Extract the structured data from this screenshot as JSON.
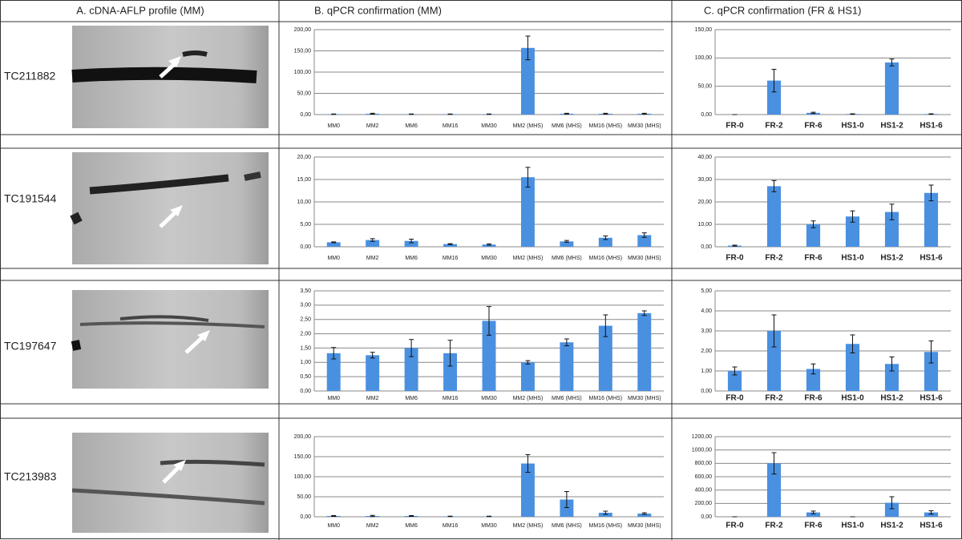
{
  "headers": [
    "A. cDNA-AFLP profile (MM)",
    "B. qPCR confirmation (MM)",
    "C. qPCR confirmation (FR & HS1)"
  ],
  "genes": [
    "TC211882",
    "TC191544",
    "TC197647",
    "TC213983"
  ],
  "chart_data": [
    {
      "type": "bar",
      "color": "#4a90e0",
      "grid": true,
      "categories": [
        "MM0",
        "MM2",
        "MM6",
        "MM16",
        "MM30",
        "MM2 (MHS)",
        "MM6 (MHS)",
        "MM16 (MHS)",
        "MM30 (MHS)"
      ],
      "values": [
        1,
        2,
        1,
        1,
        1,
        157,
        2,
        2,
        2
      ],
      "errors": [
        0.5,
        1,
        0.5,
        0.5,
        0.5,
        28,
        1,
        1,
        1
      ],
      "ylim": [
        0,
        200
      ],
      "yticks": [
        {
          "value": 0,
          "label": "0,00"
        },
        {
          "value": 50,
          "label": "50,00"
        },
        {
          "value": 100,
          "label": "100,00"
        },
        {
          "value": 150,
          "label": "150,00"
        },
        {
          "value": 200,
          "label": "200,00"
        }
      ]
    },
    {
      "type": "bar",
      "color": "#4a90e0",
      "grid": true,
      "categories": [
        "FR-0",
        "FR-2",
        "FR-6",
        "HS1-0",
        "HS1-2",
        "HS1-6"
      ],
      "category_colors": [
        "#e8262a",
        "#e8262a",
        "#e8262a",
        "#33e0f0",
        "#33e0f0",
        "#33e0f0"
      ],
      "values": [
        0,
        60,
        3,
        1,
        92,
        1
      ],
      "errors": [
        0,
        20,
        1,
        0.5,
        6,
        0.5
      ],
      "ylim": [
        0,
        150
      ],
      "yticks": [
        {
          "value": 0,
          "label": "0,00"
        },
        {
          "value": 50,
          "label": "50,00"
        },
        {
          "value": 100,
          "label": "100,00"
        },
        {
          "value": 150,
          "label": "150,00"
        }
      ]
    },
    {
      "type": "bar",
      "color": "#4a90e0",
      "grid": true,
      "categories": [
        "MM0",
        "MM2",
        "MM6",
        "MM16",
        "MM30",
        "MM2 (MHS)",
        "MM6 (MHS)",
        "MM16 (MHS)",
        "MM30 (MHS)"
      ],
      "values": [
        1.0,
        1.5,
        1.3,
        0.6,
        0.5,
        15.5,
        1.2,
        2.0,
        2.6
      ],
      "errors": [
        0.1,
        0.3,
        0.4,
        0.1,
        0.15,
        2.2,
        0.2,
        0.4,
        0.5
      ],
      "ylim": [
        0,
        20
      ],
      "yticks": [
        {
          "value": 0,
          "label": "0,00"
        },
        {
          "value": 5,
          "label": "5,00"
        },
        {
          "value": 10,
          "label": "10,00"
        },
        {
          "value": 15,
          "label": "15,00"
        },
        {
          "value": 20,
          "label": "20,00"
        }
      ]
    },
    {
      "type": "bar",
      "color": "#4a90e0",
      "grid": true,
      "categories": [
        "FR-0",
        "FR-2",
        "FR-6",
        "HS1-0",
        "HS1-2",
        "HS1-6"
      ],
      "category_colors": [
        "#e8262a",
        "#e8262a",
        "#e8262a",
        "#33e0f0",
        "#33e0f0",
        "#33e0f0"
      ],
      "values": [
        0.5,
        27,
        10,
        13.5,
        15.5,
        24
      ],
      "errors": [
        0.2,
        2.5,
        1.5,
        2.5,
        3.5,
        3.5
      ],
      "ylim": [
        0,
        40
      ],
      "yticks": [
        {
          "value": 0,
          "label": "0,00"
        },
        {
          "value": 10,
          "label": "10,00"
        },
        {
          "value": 20,
          "label": "20,00"
        },
        {
          "value": 30,
          "label": "30,00"
        },
        {
          "value": 40,
          "label": "40,00"
        }
      ]
    },
    {
      "type": "bar",
      "color": "#4a90e0",
      "grid": true,
      "categories": [
        "MM0",
        "MM2",
        "MM6",
        "MM16",
        "MM30",
        "MM2 (MHS)",
        "MM6 (MHS)",
        "MM16 (MHS)",
        "MM30 (MHS)"
      ],
      "values": [
        1.32,
        1.25,
        1.5,
        1.32,
        2.45,
        1.0,
        1.7,
        2.28,
        2.72
      ],
      "errors": [
        0.2,
        0.1,
        0.3,
        0.45,
        0.5,
        0.06,
        0.12,
        0.38,
        0.08
      ],
      "ylim": [
        0,
        3.5
      ],
      "yticks": [
        {
          "value": 0,
          "label": "0,00"
        },
        {
          "value": 0.5,
          "label": "0,50"
        },
        {
          "value": 1,
          "label": "1,00"
        },
        {
          "value": 1.5,
          "label": "1,50"
        },
        {
          "value": 2,
          "label": "2,00"
        },
        {
          "value": 2.5,
          "label": "2,50"
        },
        {
          "value": 3,
          "label": "3,00"
        },
        {
          "value": 3.5,
          "label": "3,50"
        }
      ]
    },
    {
      "type": "bar",
      "color": "#4a90e0",
      "grid": true,
      "categories": [
        "FR-0",
        "FR-2",
        "FR-6",
        "HS1-0",
        "HS1-2",
        "HS1-6"
      ],
      "category_colors": [
        "#e8262a",
        "#e8262a",
        "#e8262a",
        "#33e0f0",
        "#33e0f0",
        "#33e0f0"
      ],
      "values": [
        1.0,
        3.0,
        1.1,
        2.35,
        1.35,
        1.95
      ],
      "errors": [
        0.2,
        0.8,
        0.25,
        0.45,
        0.35,
        0.55
      ],
      "ylim": [
        0,
        5
      ],
      "yticks": [
        {
          "value": 0,
          "label": "0,00"
        },
        {
          "value": 1,
          "label": "1,00"
        },
        {
          "value": 2,
          "label": "2,00"
        },
        {
          "value": 3,
          "label": "3,00"
        },
        {
          "value": 4,
          "label": "4,00"
        },
        {
          "value": 5,
          "label": "5,00"
        }
      ]
    },
    {
      "type": "bar",
      "color": "#4a90e0",
      "grid": true,
      "categories": [
        "MM0",
        "MM2",
        "MM6",
        "MM16",
        "MM30",
        "MM2 (MHS)",
        "MM6 (MHS)",
        "MM16 (MHS)",
        "MM30 (MHS)"
      ],
      "values": [
        2,
        2,
        2,
        1,
        1,
        133,
        43,
        10,
        8
      ],
      "errors": [
        1,
        1.5,
        1,
        0.5,
        0.5,
        22,
        20,
        4,
        2
      ],
      "ylim": [
        0,
        200
      ],
      "yticks": [
        {
          "value": 0,
          "label": "0,00"
        },
        {
          "value": 50,
          "label": "50,00"
        },
        {
          "value": 100,
          "label": "100,00"
        },
        {
          "value": 150,
          "label": "150,00"
        },
        {
          "value": 200,
          "label": "200,00"
        }
      ]
    },
    {
      "type": "bar",
      "color": "#4a90e0",
      "grid": true,
      "categories": [
        "FR-0",
        "FR-2",
        "FR-6",
        "HS1-0",
        "HS1-2",
        "HS1-6"
      ],
      "category_colors": [
        "#e8262a",
        "#e8262a",
        "#e8262a",
        "#33e0f0",
        "#33e0f0",
        "#33e0f0"
      ],
      "values": [
        0,
        800,
        65,
        0,
        210,
        65
      ],
      "errors": [
        0,
        160,
        20,
        0,
        90,
        25
      ],
      "ylim": [
        0,
        1200
      ],
      "yticks": [
        {
          "value": 0,
          "label": "0,00"
        },
        {
          "value": 200,
          "label": "200,00"
        },
        {
          "value": 400,
          "label": "400,00"
        },
        {
          "value": 600,
          "label": "600,00"
        },
        {
          "value": 800,
          "label": "800,00"
        },
        {
          "value": 1000,
          "label": "1000,00"
        },
        {
          "value": 1200,
          "label": "1200,00"
        }
      ]
    }
  ]
}
